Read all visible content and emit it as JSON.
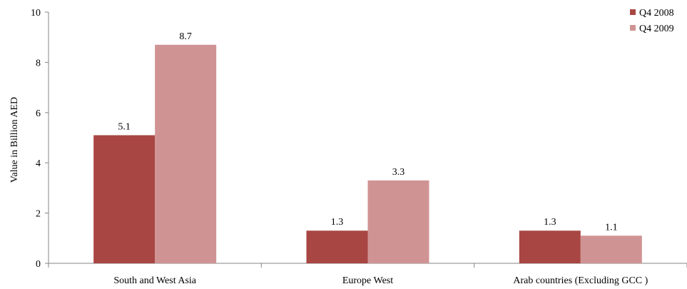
{
  "chart_data": {
    "type": "bar",
    "title": "",
    "xlabel": "",
    "ylabel": "Value in Billion AED",
    "ylim": [
      0,
      10
    ],
    "yticks": [
      0,
      2,
      4,
      6,
      8,
      10
    ],
    "grid": false,
    "legend_position": "top-right",
    "categories": [
      "South and West Asia",
      "Europe West",
      "Arab countries (Excluding GCC )"
    ],
    "series": [
      {
        "name": "Q4 2008",
        "color": "#A84643",
        "values": [
          5.1,
          1.3,
          1.3
        ]
      },
      {
        "name": "Q4 2009",
        "color": "#D09393",
        "values": [
          8.7,
          3.3,
          1.1
        ]
      }
    ]
  }
}
